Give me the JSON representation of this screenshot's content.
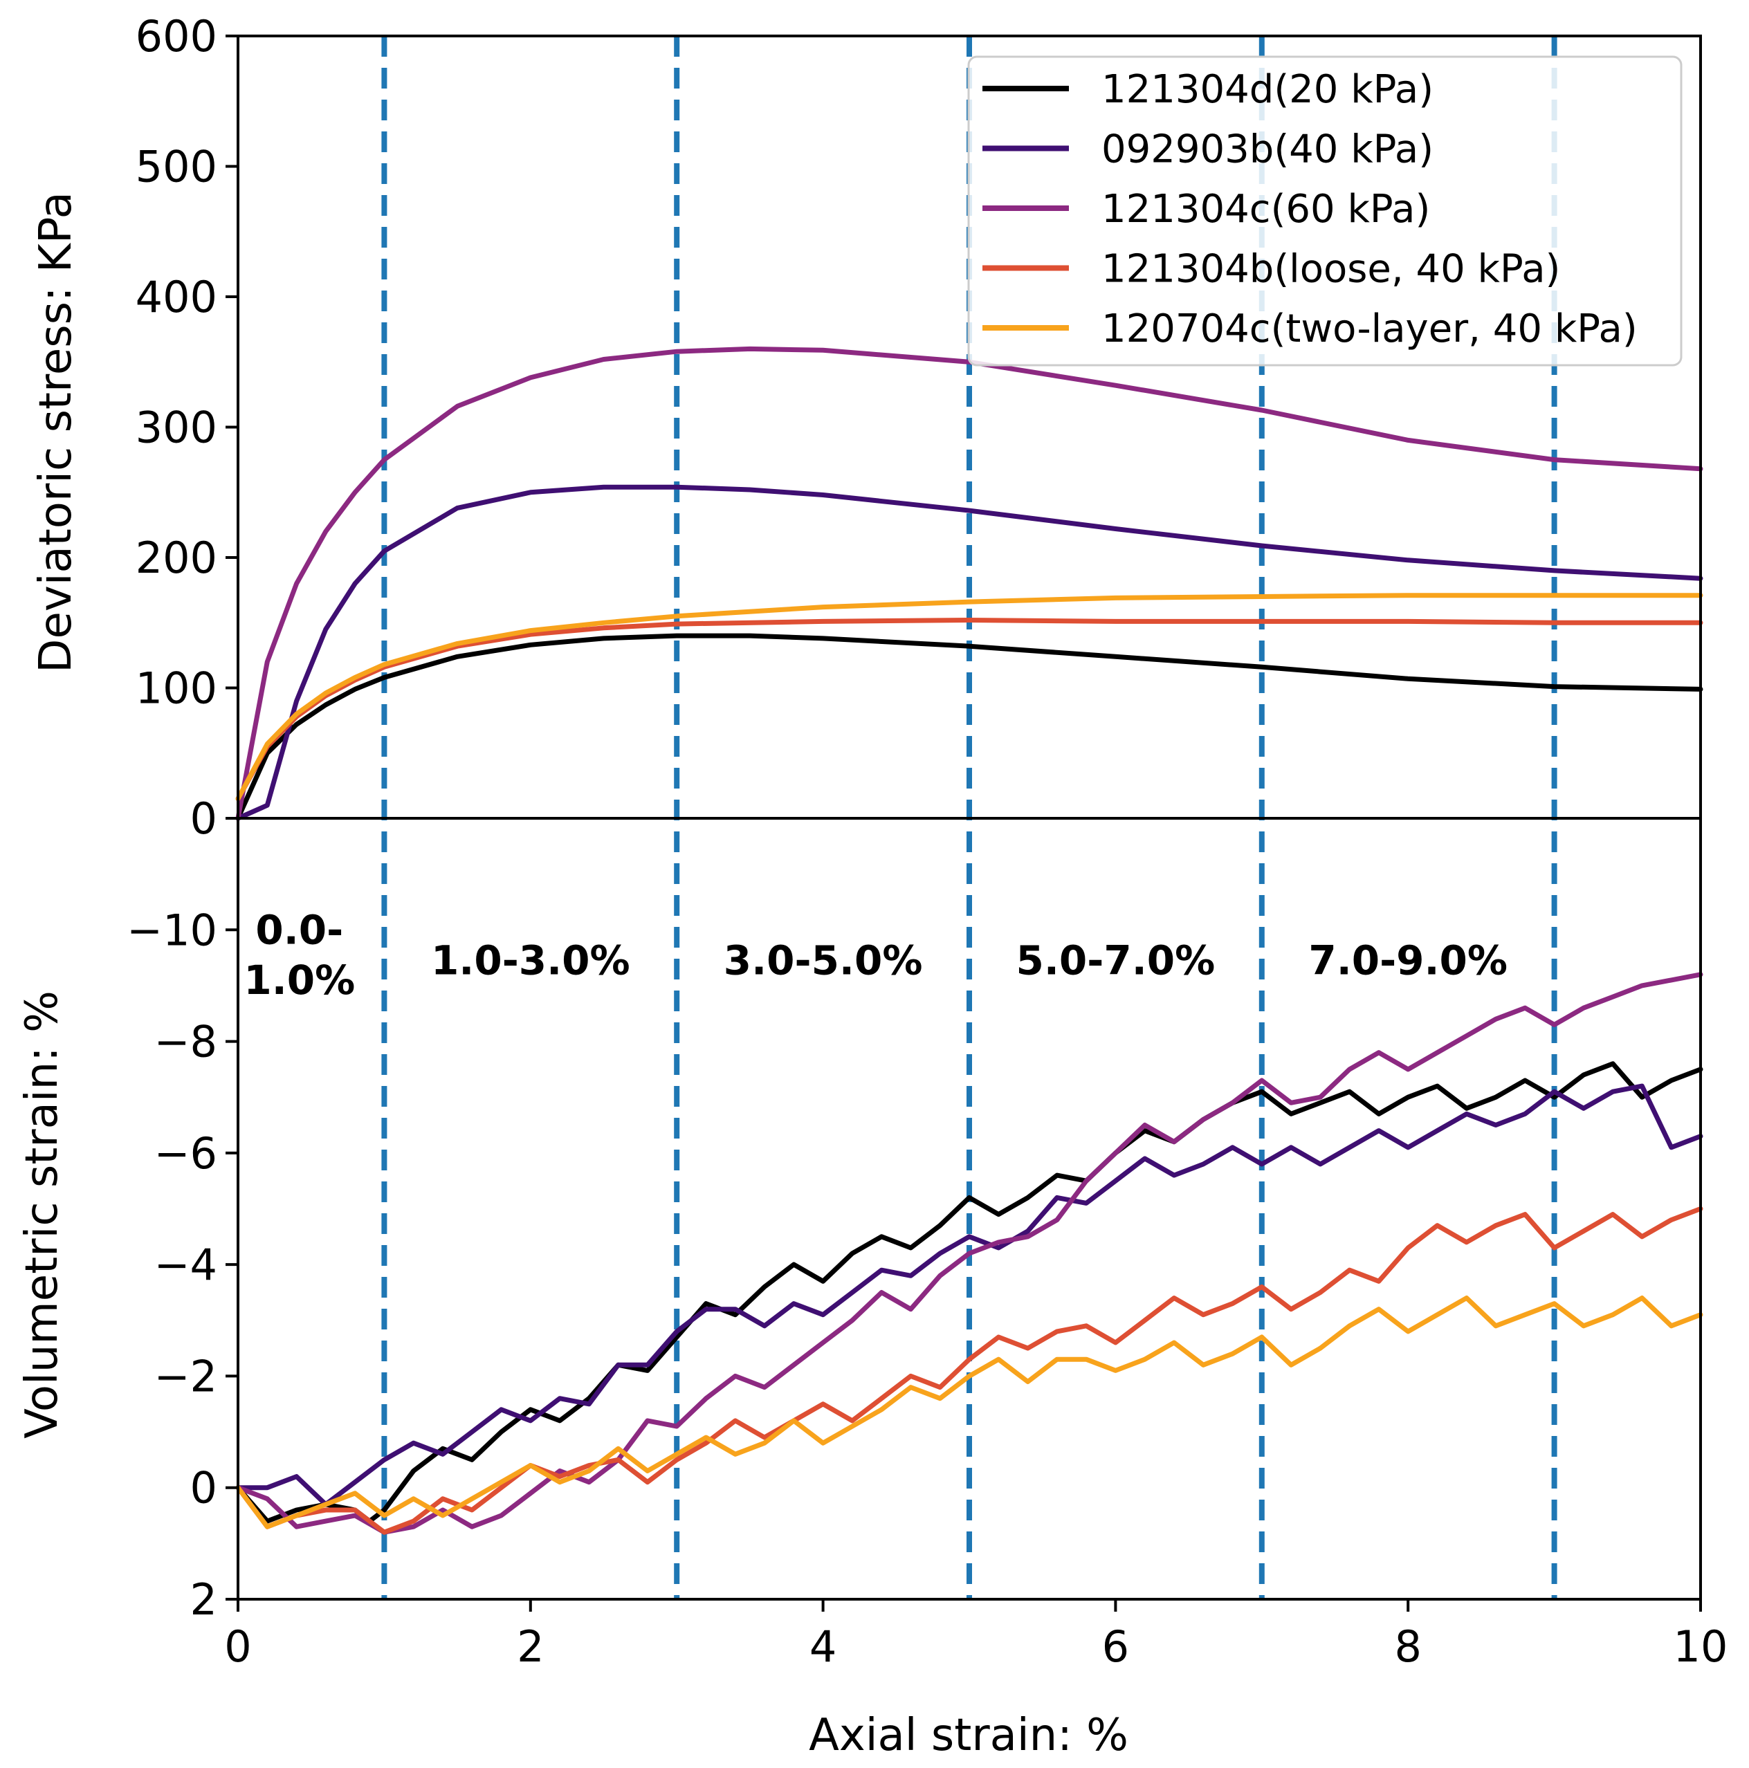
{
  "chart_data": {
    "type": "line",
    "xlabel": "Axial strain: %",
    "xlim": [
      0,
      10
    ],
    "xticks": [
      "0",
      "2",
      "4",
      "6",
      "8",
      "10"
    ],
    "legend_position": "top-right",
    "dividers": [
      1,
      3,
      5,
      7,
      9
    ],
    "divider_color": "#1f77b4",
    "panels": [
      {
        "id": "top",
        "ylabel": "Deviatoric stress: KPa",
        "ylim": [
          0,
          600
        ],
        "yticks": [
          "0",
          "100",
          "200",
          "300",
          "400",
          "500",
          "600"
        ],
        "series": [
          {
            "name": "121304d(20 kPa)",
            "color": "#000000",
            "x": [
              0,
              0.2,
              0.4,
              0.6,
              0.8,
              1.0,
              1.5,
              2.0,
              2.5,
              3.0,
              3.5,
              4.0,
              5.0,
              6.0,
              7.0,
              8.0,
              9.0,
              10.0
            ],
            "y": [
              0,
              50,
              72,
              87,
              99,
              108,
              124,
              133,
              138,
              140,
              140,
              138,
              132,
              124,
              116,
              107,
              101,
              99
            ]
          },
          {
            "name": "092903b(40 kPa)",
            "color": "#3f0f72",
            "x": [
              0,
              0.2,
              0.4,
              0.6,
              0.8,
              1.0,
              1.5,
              2.0,
              2.5,
              3.0,
              3.5,
              4.0,
              5.0,
              6.0,
              7.0,
              8.0,
              9.0,
              10.0
            ],
            "y": [
              0,
              10,
              90,
              145,
              180,
              205,
              238,
              250,
              254,
              254,
              252,
              248,
              236,
              222,
              209,
              198,
              190,
              184
            ]
          },
          {
            "name": "121304c(60 kPa)",
            "color": "#8c2981",
            "x": [
              0,
              0.2,
              0.4,
              0.6,
              0.8,
              1.0,
              1.5,
              2.0,
              2.5,
              3.0,
              3.5,
              4.0,
              5.0,
              6.0,
              7.0,
              8.0,
              9.0,
              10.0
            ],
            "y": [
              0,
              120,
              180,
              220,
              250,
              275,
              316,
              338,
              352,
              358,
              360,
              359,
              350,
              332,
              313,
              290,
              275,
              268
            ]
          },
          {
            "name": "121304b(loose, 40 kPa)",
            "color": "#de4f33",
            "x": [
              0,
              0.2,
              0.4,
              0.6,
              0.8,
              1.0,
              1.5,
              2.0,
              2.5,
              3.0,
              4.0,
              5.0,
              6.0,
              7.0,
              8.0,
              9.0,
              10.0
            ],
            "y": [
              15,
              55,
              78,
              94,
              106,
              116,
              132,
              141,
              146,
              149,
              151,
              152,
              151,
              151,
              151,
              150,
              150
            ]
          },
          {
            "name": "120704c(two-layer, 40 kPa)",
            "color": "#f8a31c",
            "x": [
              0,
              0.2,
              0.4,
              0.6,
              0.8,
              1.0,
              1.5,
              2.0,
              2.5,
              3.0,
              4.0,
              5.0,
              6.0,
              7.0,
              8.0,
              9.0,
              10.0
            ],
            "y": [
              15,
              57,
              80,
              96,
              108,
              118,
              134,
              144,
              150,
              155,
              162,
              166,
              169,
              170,
              171,
              171,
              171
            ]
          }
        ]
      },
      {
        "id": "bottom",
        "ylabel": "Volumetric strain: %",
        "ylim": [
          2,
          -12
        ],
        "yticks": [
          "2",
          "0",
          "−2",
          "−4",
          "−6",
          "−8",
          "−10"
        ],
        "regions": [
          {
            "x": 0.42,
            "y": -10.0,
            "label": "0.0-"
          },
          {
            "x": 0.42,
            "y": -9.1,
            "label": "1.0%"
          },
          {
            "x": 2.0,
            "y": -9.45,
            "label": "1.0-3.0%"
          },
          {
            "x": 4.0,
            "y": -9.45,
            "label": "3.0-5.0%"
          },
          {
            "x": 6.0,
            "y": -9.45,
            "label": "5.0-7.0%"
          },
          {
            "x": 8.0,
            "y": -9.45,
            "label": "7.0-9.0%"
          }
        ],
        "series": [
          {
            "name": "121304d(20 kPa)",
            "color": "#000000",
            "x": [
              0,
              0.2,
              0.4,
              0.6,
              0.8,
              0.9,
              1.0,
              1.2,
              1.4,
              1.6,
              1.8,
              2.0,
              2.2,
              2.4,
              2.6,
              2.8,
              3.0,
              3.2,
              3.4,
              3.6,
              3.8,
              4.0,
              4.2,
              4.4,
              4.6,
              4.8,
              5.0,
              5.2,
              5.4,
              5.6,
              5.8,
              6.0,
              6.2,
              6.4,
              6.6,
              6.8,
              7.0,
              7.2,
              7.4,
              7.6,
              7.8,
              8.0,
              8.2,
              8.4,
              8.6,
              8.8,
              9.0,
              9.2,
              9.4,
              9.6,
              9.8,
              10.0
            ],
            "y": [
              0,
              0.6,
              0.4,
              0.3,
              0.4,
              0.6,
              0.4,
              -0.3,
              -0.7,
              -0.5,
              -1.0,
              -1.4,
              -1.2,
              -1.6,
              -2.2,
              -2.1,
              -2.7,
              -3.3,
              -3.1,
              -3.6,
              -4.0,
              -3.7,
              -4.2,
              -4.5,
              -4.3,
              -4.7,
              -5.2,
              -4.9,
              -5.2,
              -5.6,
              -5.5,
              -6.0,
              -6.4,
              -6.2,
              -6.6,
              -6.9,
              -7.1,
              -6.7,
              -6.9,
              -7.1,
              -6.7,
              -7.0,
              -7.2,
              -6.8,
              -7.0,
              -7.3,
              -7.0,
              -7.4,
              -7.6,
              -7.0,
              -7.3,
              -7.5
            ]
          },
          {
            "name": "092903b(40 kPa)",
            "color": "#3f0f72",
            "x": [
              0,
              0.2,
              0.4,
              0.6,
              0.8,
              1.0,
              1.2,
              1.4,
              1.6,
              1.8,
              2.0,
              2.2,
              2.4,
              2.6,
              2.8,
              3.0,
              3.2,
              3.4,
              3.6,
              3.8,
              4.0,
              4.2,
              4.4,
              4.6,
              4.8,
              5.0,
              5.2,
              5.4,
              5.6,
              5.8,
              6.0,
              6.2,
              6.4,
              6.6,
              6.8,
              7.0,
              7.2,
              7.4,
              7.6,
              7.8,
              8.0,
              8.2,
              8.4,
              8.6,
              8.8,
              9.0,
              9.2,
              9.4,
              9.6,
              9.8,
              10.0
            ],
            "y": [
              0,
              0,
              -0.2,
              0.3,
              -0.1,
              -0.5,
              -0.8,
              -0.6,
              -1.0,
              -1.4,
              -1.2,
              -1.6,
              -1.5,
              -2.2,
              -2.2,
              -2.8,
              -3.2,
              -3.2,
              -2.9,
              -3.3,
              -3.1,
              -3.5,
              -3.9,
              -3.8,
              -4.2,
              -4.5,
              -4.3,
              -4.6,
              -5.2,
              -5.1,
              -5.5,
              -5.9,
              -5.6,
              -5.8,
              -6.1,
              -5.8,
              -6.1,
              -5.8,
              -6.1,
              -6.4,
              -6.1,
              -6.4,
              -6.7,
              -6.5,
              -6.7,
              -7.1,
              -6.8,
              -7.1,
              -7.2,
              -6.1,
              -6.3
            ]
          },
          {
            "name": "121304c(60 kPa)",
            "color": "#8c2981",
            "x": [
              0,
              0.2,
              0.4,
              0.6,
              0.8,
              1.0,
              1.2,
              1.4,
              1.6,
              1.8,
              2.0,
              2.2,
              2.4,
              2.6,
              2.8,
              3.0,
              3.2,
              3.4,
              3.6,
              3.8,
              4.0,
              4.2,
              4.4,
              4.6,
              4.8,
              5.0,
              5.2,
              5.4,
              5.6,
              5.8,
              6.0,
              6.2,
              6.4,
              6.6,
              6.8,
              7.0,
              7.2,
              7.4,
              7.6,
              7.8,
              8.0,
              8.2,
              8.4,
              8.6,
              8.8,
              9.0,
              9.2,
              9.4,
              9.6,
              9.8,
              10.0
            ],
            "y": [
              0,
              0.2,
              0.7,
              0.6,
              0.5,
              0.8,
              0.7,
              0.4,
              0.7,
              0.5,
              0.1,
              -0.3,
              -0.1,
              -0.5,
              -1.2,
              -1.1,
              -1.6,
              -2.0,
              -1.8,
              -2.2,
              -2.6,
              -3.0,
              -3.5,
              -3.2,
              -3.8,
              -4.2,
              -4.4,
              -4.5,
              -4.8,
              -5.5,
              -6.0,
              -6.5,
              -6.2,
              -6.6,
              -6.9,
              -7.3,
              -6.9,
              -7.0,
              -7.5,
              -7.8,
              -7.5,
              -7.8,
              -8.1,
              -8.4,
              -8.6,
              -8.3,
              -8.6,
              -8.8,
              -9.0,
              -9.1,
              -9.2
            ]
          },
          {
            "name": "121304b(loose, 40 kPa)",
            "color": "#de4f33",
            "x": [
              0,
              0.2,
              0.4,
              0.6,
              0.8,
              1.0,
              1.2,
              1.4,
              1.6,
              1.8,
              2.0,
              2.2,
              2.4,
              2.6,
              2.8,
              3.0,
              3.2,
              3.4,
              3.6,
              3.8,
              4.0,
              4.2,
              4.4,
              4.6,
              4.8,
              5.0,
              5.2,
              5.4,
              5.6,
              5.8,
              6.0,
              6.2,
              6.4,
              6.6,
              6.8,
              7.0,
              7.2,
              7.4,
              7.6,
              7.8,
              8.0,
              8.2,
              8.4,
              8.6,
              8.8,
              9.0,
              9.2,
              9.4,
              9.6,
              9.8,
              10.0
            ],
            "y": [
              0,
              0.7,
              0.5,
              0.4,
              0.4,
              0.8,
              0.6,
              0.2,
              0.4,
              0.0,
              -0.4,
              -0.2,
              -0.4,
              -0.5,
              -0.1,
              -0.5,
              -0.8,
              -1.2,
              -0.9,
              -1.2,
              -1.5,
              -1.2,
              -1.6,
              -2.0,
              -1.8,
              -2.3,
              -2.7,
              -2.5,
              -2.8,
              -2.9,
              -2.6,
              -3.0,
              -3.4,
              -3.1,
              -3.3,
              -3.6,
              -3.2,
              -3.5,
              -3.9,
              -3.7,
              -4.3,
              -4.7,
              -4.4,
              -4.7,
              -4.9,
              -4.3,
              -4.6,
              -4.9,
              -4.5,
              -4.8,
              -5.0
            ]
          },
          {
            "name": "120704c(two-layer, 40 kPa)",
            "color": "#f8a31c",
            "x": [
              0,
              0.2,
              0.4,
              0.6,
              0.8,
              1.0,
              1.2,
              1.4,
              1.6,
              1.8,
              2.0,
              2.2,
              2.4,
              2.6,
              2.8,
              3.0,
              3.2,
              3.4,
              3.6,
              3.8,
              4.0,
              4.2,
              4.4,
              4.6,
              4.8,
              5.0,
              5.2,
              5.4,
              5.6,
              5.8,
              6.0,
              6.2,
              6.4,
              6.6,
              6.8,
              7.0,
              7.2,
              7.4,
              7.6,
              7.8,
              8.0,
              8.2,
              8.4,
              8.6,
              8.8,
              9.0,
              9.2,
              9.4,
              9.6,
              9.8,
              10.0
            ],
            "y": [
              0,
              0.7,
              0.5,
              0.3,
              0.1,
              0.5,
              0.2,
              0.5,
              0.2,
              -0.1,
              -0.4,
              -0.1,
              -0.3,
              -0.7,
              -0.3,
              -0.6,
              -0.9,
              -0.6,
              -0.8,
              -1.2,
              -0.8,
              -1.1,
              -1.4,
              -1.8,
              -1.6,
              -2.0,
              -2.3,
              -1.9,
              -2.3,
              -2.3,
              -2.1,
              -2.3,
              -2.6,
              -2.2,
              -2.4,
              -2.7,
              -2.2,
              -2.5,
              -2.9,
              -3.2,
              -2.8,
              -3.1,
              -3.4,
              -2.9,
              -3.1,
              -3.3,
              -2.9,
              -3.1,
              -3.4,
              -2.9,
              -3.1
            ]
          }
        ]
      }
    ]
  }
}
